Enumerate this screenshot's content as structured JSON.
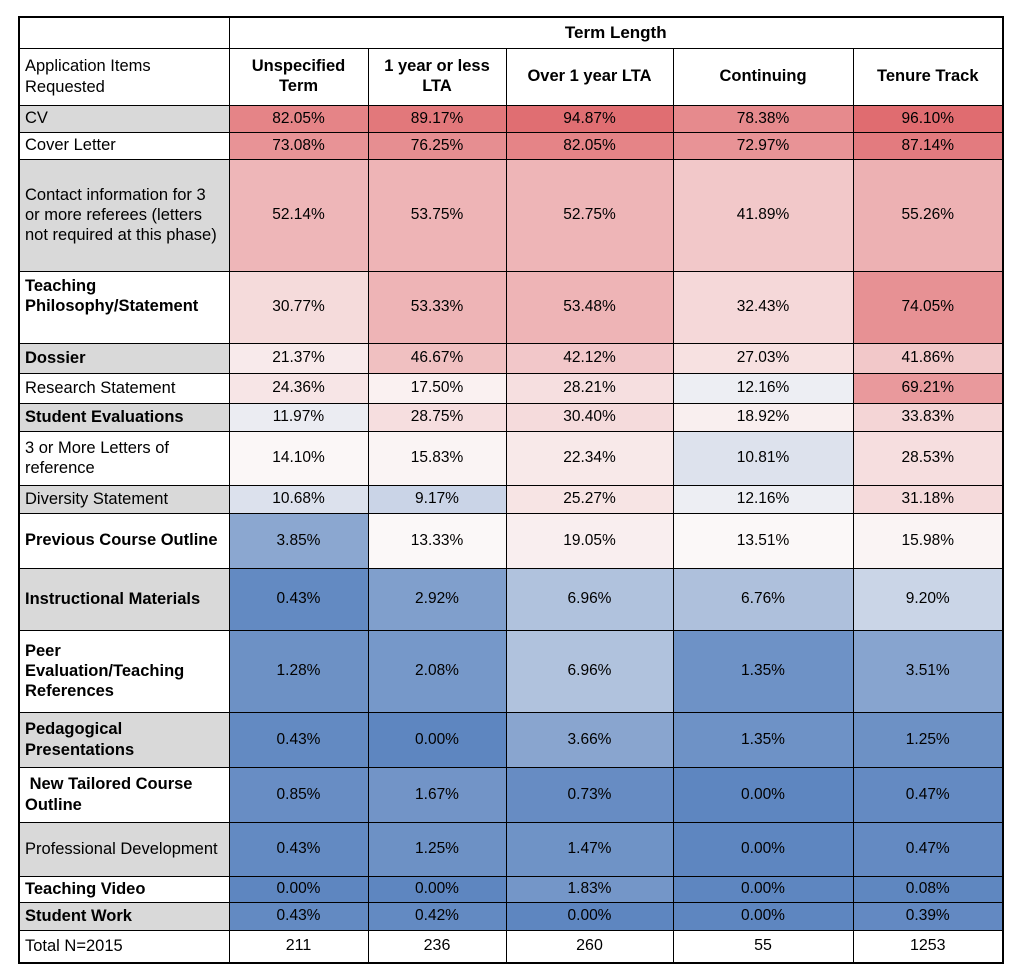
{
  "chart_data": {
    "type": "heatmap",
    "title": "Term Length",
    "row_header_title": "Application Items Requested",
    "columns": [
      "Unspecified Term",
      "1 year or less LTA",
      "Over 1 year LTA",
      "Continuing",
      "Tenure Track"
    ],
    "value_format": "percent_2dp",
    "rows": [
      {
        "label": "CV",
        "bold": false,
        "shaded": true,
        "values": [
          82.05,
          89.17,
          94.87,
          78.38,
          96.1
        ]
      },
      {
        "label": "Cover Letter",
        "bold": false,
        "shaded": false,
        "values": [
          73.08,
          76.25,
          82.05,
          72.97,
          87.14
        ]
      },
      {
        "label": "Contact information for 3 or more referees (letters not required at this phase)",
        "bold": false,
        "shaded": true,
        "values": [
          52.14,
          53.75,
          52.75,
          41.89,
          55.26
        ]
      },
      {
        "label": "Teaching Philosophy/Statement",
        "bold": true,
        "shaded": false,
        "values": [
          30.77,
          53.33,
          53.48,
          32.43,
          74.05
        ]
      },
      {
        "label": "Dossier",
        "bold": true,
        "shaded": true,
        "values": [
          21.37,
          46.67,
          42.12,
          27.03,
          41.86
        ]
      },
      {
        "label": "Research Statement",
        "bold": false,
        "shaded": false,
        "values": [
          24.36,
          17.5,
          28.21,
          12.16,
          69.21
        ]
      },
      {
        "label": "Student Evaluations",
        "bold": true,
        "shaded": true,
        "values": [
          11.97,
          28.75,
          30.4,
          18.92,
          33.83
        ]
      },
      {
        "label": "3 or More Letters of reference",
        "bold": false,
        "shaded": false,
        "values": [
          14.1,
          15.83,
          22.34,
          10.81,
          28.53
        ]
      },
      {
        "label": "Diversity Statement",
        "bold": false,
        "shaded": true,
        "values": [
          10.68,
          9.17,
          25.27,
          12.16,
          31.18
        ]
      },
      {
        "label": "Previous Course Outline",
        "bold": true,
        "shaded": false,
        "values": [
          3.85,
          13.33,
          19.05,
          13.51,
          15.98
        ]
      },
      {
        "label": "Instructional Materials",
        "bold": true,
        "shaded": true,
        "values": [
          0.43,
          2.92,
          6.96,
          6.76,
          9.2
        ]
      },
      {
        "label": "Peer Evaluation/Teaching References",
        "bold": true,
        "shaded": false,
        "values": [
          1.28,
          2.08,
          6.96,
          1.35,
          3.51
        ]
      },
      {
        "label": "Pedagogical Presentations",
        "bold": true,
        "shaded": true,
        "values": [
          0.43,
          0.0,
          3.66,
          1.35,
          1.25
        ]
      },
      {
        "label": " New Tailored Course Outline",
        "bold": true,
        "shaded": false,
        "values": [
          0.85,
          1.67,
          0.73,
          0.0,
          0.47
        ]
      },
      {
        "label": "Professional Development",
        "bold": false,
        "shaded": true,
        "values": [
          0.43,
          1.25,
          1.47,
          0.0,
          0.47
        ]
      },
      {
        "label": "Teaching Video",
        "bold": true,
        "shaded": false,
        "values": [
          0.0,
          0.0,
          1.83,
          0.0,
          0.08
        ]
      },
      {
        "label": "Student Work",
        "bold": true,
        "shaded": true,
        "values": [
          0.43,
          0.42,
          0.0,
          0.0,
          0.39
        ]
      }
    ],
    "totals": {
      "label": "Total N=2015",
      "values": [
        "211",
        "236",
        "260",
        "55",
        "1253"
      ]
    },
    "color_scale": {
      "min_value": 0,
      "mid_value": 13.33,
      "max_value": 96.1,
      "min_color": "#5E86C0",
      "mid_color": "#FBF8F8",
      "max_color": "#E06C70"
    },
    "shaded_row_color": "#D9D9D9",
    "layout": {
      "legend": "none",
      "grid": "black cell borders",
      "high_is_red_low_is_blue": true
    }
  }
}
